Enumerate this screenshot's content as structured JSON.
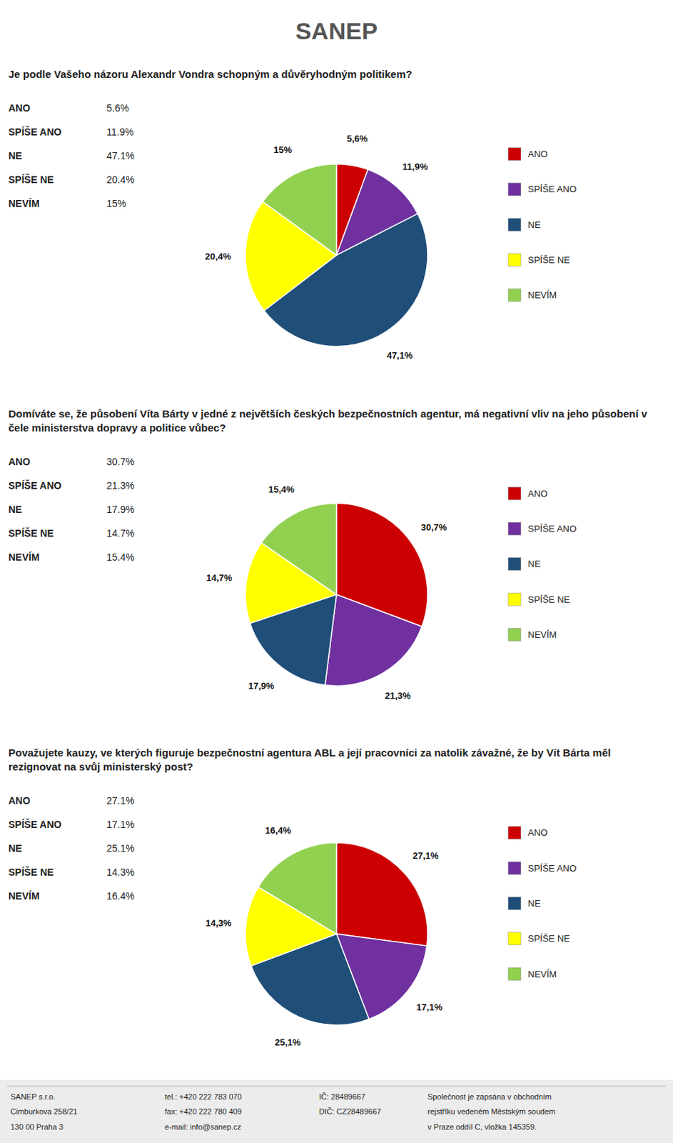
{
  "header": "SANEP",
  "chart_data": [
    {
      "type": "pie",
      "title": "Je podle Vašeho názoru Alexandr Vondra schopným a důvěryhodným politikem?",
      "categories": [
        "ANO",
        "SPÍŠE ANO",
        "NE",
        "SPÍŠE NE",
        "NEVÍM"
      ],
      "values": [
        5.6,
        11.9,
        47.1,
        20.4,
        15.0
      ],
      "value_labels": [
        "5,6%",
        "11,9%",
        "47,1%",
        "20,4%",
        "15%"
      ],
      "annotations": [
        "5.6%",
        "11.9%",
        "47.1%",
        "20.4%",
        "15%"
      ],
      "colors": [
        "#cc0000",
        "#7030a0",
        "#1f4e79",
        "#ffff00",
        "#92d050"
      ],
      "data_labels": true,
      "legend": "right"
    },
    {
      "type": "pie",
      "title": "Domíváte se, že působení Víta Bárty v jedné z největších českých bezpečnostních agentur, má negativní vliv na jeho působení v čele ministerstva dopravy a politice vůbec?",
      "categories": [
        "ANO",
        "SPÍŠE ANO",
        "NE",
        "SPÍŠE NE",
        "NEVÍM"
      ],
      "values": [
        30.7,
        21.3,
        17.9,
        14.7,
        15.4
      ],
      "value_labels": [
        "30,7%",
        "21,3%",
        "17,9%",
        "14,7%",
        "15,4%"
      ],
      "annotations": [
        "30.7%",
        "21.3%",
        "17.9%",
        "14.7%",
        "15.4%"
      ],
      "colors": [
        "#cc0000",
        "#7030a0",
        "#1f4e79",
        "#ffff00",
        "#92d050"
      ],
      "data_labels": true,
      "legend": "right"
    },
    {
      "type": "pie",
      "title": "Považujete kauzy, ve kterých figuruje bezpečnostní agentura ABL a její pracovníci za natolik závažné, že by Vít Bárta měl rezignovat na svůj ministerský post?",
      "categories": [
        "ANO",
        "SPÍŠE ANO",
        "NE",
        "SPÍŠE NE",
        "NEVÍM"
      ],
      "values": [
        27.1,
        17.1,
        25.1,
        14.3,
        16.4
      ],
      "value_labels": [
        "27,1%",
        "17,1%",
        "25,1%",
        "14,3%",
        "16,4%"
      ],
      "annotations": [
        "27.1%",
        "17.1%",
        "25.1%",
        "14.3%",
        "16.4%"
      ],
      "colors": [
        "#cc0000",
        "#7030a0",
        "#1f4e79",
        "#ffff00",
        "#92d050"
      ],
      "data_labels": true,
      "legend": "right"
    }
  ],
  "footer": [
    [
      "SANEP s.r.o.",
      "Cimburkova 258/21",
      "130 00 Praha 3"
    ],
    [
      "tel.: +420 222 783 070",
      "fax: +420 222 780 409",
      "e-mail: info@sanep.cz"
    ],
    [
      "IČ: 28489667",
      "DIČ: CZ28489667"
    ],
    [
      "Společnost je zapsána v obchodním",
      "rejstříku vedeném Městským soudem",
      "v Praze oddíl C, vložka 145359."
    ]
  ]
}
